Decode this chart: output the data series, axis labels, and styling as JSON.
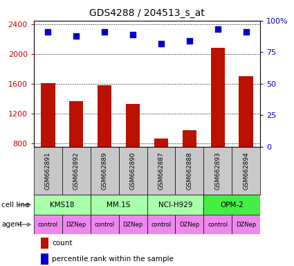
{
  "title": "GDS4288 / 204513_s_at",
  "samples": [
    "GSM662891",
    "GSM662892",
    "GSM662889",
    "GSM662890",
    "GSM662887",
    "GSM662888",
    "GSM662893",
    "GSM662894"
  ],
  "counts": [
    1610,
    1370,
    1580,
    1330,
    860,
    970,
    2080,
    1700
  ],
  "percentile_ranks": [
    91,
    88,
    91,
    89,
    82,
    84,
    93,
    91
  ],
  "ylim_left": [
    750,
    2450
  ],
  "ylim_right": [
    0,
    100
  ],
  "yticks_left": [
    800,
    1200,
    1600,
    2000,
    2400
  ],
  "yticks_right": [
    0,
    25,
    50,
    75,
    100
  ],
  "cell_lines": [
    {
      "label": "KMS18",
      "span": [
        0,
        2
      ],
      "color": "#aaffaa"
    },
    {
      "label": "MM.1S",
      "span": [
        2,
        4
      ],
      "color": "#aaffaa"
    },
    {
      "label": "NCI-H929",
      "span": [
        4,
        6
      ],
      "color": "#aaffaa"
    },
    {
      "label": "OPM-2",
      "span": [
        6,
        8
      ],
      "color": "#44ee44"
    }
  ],
  "agents": [
    {
      "label": "control",
      "span": [
        0,
        1
      ],
      "color": "#ee88ee"
    },
    {
      "label": "DZNep",
      "span": [
        1,
        2
      ],
      "color": "#ee88ee"
    },
    {
      "label": "control",
      "span": [
        2,
        3
      ],
      "color": "#ee88ee"
    },
    {
      "label": "DZNep",
      "span": [
        3,
        4
      ],
      "color": "#ee88ee"
    },
    {
      "label": "control",
      "span": [
        4,
        5
      ],
      "color": "#ee88ee"
    },
    {
      "label": "DZNep",
      "span": [
        5,
        6
      ],
      "color": "#ee88ee"
    },
    {
      "label": "control",
      "span": [
        6,
        7
      ],
      "color": "#ee88ee"
    },
    {
      "label": "DZNep",
      "span": [
        7,
        8
      ],
      "color": "#ee88ee"
    }
  ],
  "bar_color": "#BB1100",
  "dot_color": "#0000CC",
  "sample_bg_color": "#C8C8C8",
  "bar_width": 0.5,
  "left_axis_color": "#CC0000",
  "right_axis_color": "#0000CC",
  "border_color": "#000000",
  "label_fontsize": 7.5,
  "tick_fontsize": 8,
  "title_fontsize": 10
}
